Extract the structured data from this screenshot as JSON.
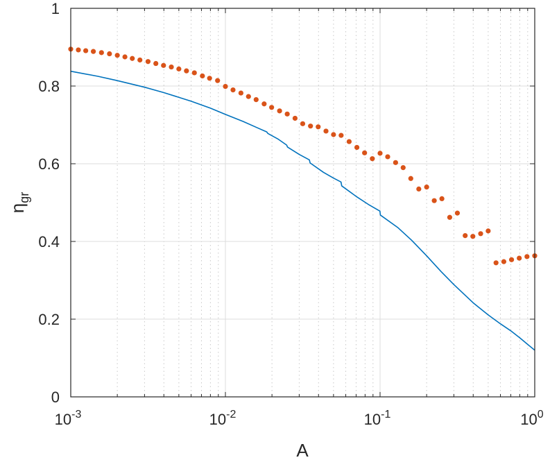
{
  "chart_data": {
    "type": "line",
    "xlabel": "A",
    "ylabel": "η",
    "ylabel_subscript": "gr",
    "x_scale": "log",
    "xlim": [
      0.001,
      1
    ],
    "ylim": [
      0,
      1
    ],
    "x_ticks": [
      {
        "value": 0.001,
        "base": "10",
        "exp": "-3"
      },
      {
        "value": 0.01,
        "base": "10",
        "exp": "-2"
      },
      {
        "value": 0.1,
        "base": "10",
        "exp": "-1"
      },
      {
        "value": 1,
        "base": "10",
        "exp": "0"
      }
    ],
    "y_ticks": [
      {
        "value": 0,
        "label": "0"
      },
      {
        "value": 0.2,
        "label": "0.2"
      },
      {
        "value": 0.4,
        "label": "0.4"
      },
      {
        "value": 0.6,
        "label": "0.6"
      },
      {
        "value": 0.8,
        "label": "0.8"
      },
      {
        "value": 1,
        "label": "1"
      }
    ],
    "grid": true,
    "minor_grid_x": true,
    "series": [
      {
        "style": "line",
        "color": "#0072BD",
        "points": [
          [
            0.001,
            0.838
          ],
          [
            0.0015,
            0.825
          ],
          [
            0.002,
            0.814
          ],
          [
            0.003,
            0.797
          ],
          [
            0.004,
            0.783
          ],
          [
            0.006,
            0.761
          ],
          [
            0.008,
            0.743
          ],
          [
            0.01,
            0.727
          ],
          [
            0.013,
            0.709
          ],
          [
            0.016,
            0.693
          ],
          [
            0.0185,
            0.682
          ],
          [
            0.0188,
            0.678
          ],
          [
            0.022,
            0.663
          ],
          [
            0.0249,
            0.648
          ],
          [
            0.0252,
            0.643
          ],
          [
            0.03,
            0.624
          ],
          [
            0.0349,
            0.61
          ],
          [
            0.0353,
            0.602
          ],
          [
            0.043,
            0.578
          ],
          [
            0.05,
            0.563
          ],
          [
            0.0559,
            0.553
          ],
          [
            0.0565,
            0.543
          ],
          [
            0.07,
            0.516
          ],
          [
            0.085,
            0.494
          ],
          [
            0.0998,
            0.478
          ],
          [
            0.1004,
            0.468
          ],
          [
            0.13,
            0.436
          ],
          [
            0.16,
            0.403
          ],
          [
            0.2,
            0.363
          ],
          [
            0.25,
            0.321
          ],
          [
            0.3,
            0.289
          ],
          [
            0.4,
            0.242
          ],
          [
            0.5,
            0.211
          ],
          [
            0.6,
            0.188
          ],
          [
            0.7,
            0.17
          ],
          [
            0.8,
            0.152
          ],
          [
            0.9,
            0.135
          ],
          [
            1.0,
            0.12
          ]
        ]
      },
      {
        "style": "dots",
        "color": "#D95319",
        "points": [
          [
            0.001,
            0.895
          ],
          [
            0.00112,
            0.893
          ],
          [
            0.00125,
            0.891
          ],
          [
            0.0014,
            0.889
          ],
          [
            0.00158,
            0.886
          ],
          [
            0.00178,
            0.883
          ],
          [
            0.002,
            0.879
          ],
          [
            0.00224,
            0.875
          ],
          [
            0.0025,
            0.871
          ],
          [
            0.0028,
            0.867
          ],
          [
            0.00316,
            0.863
          ],
          [
            0.00355,
            0.858
          ],
          [
            0.00398,
            0.853
          ],
          [
            0.00447,
            0.849
          ],
          [
            0.005,
            0.844
          ],
          [
            0.0056,
            0.839
          ],
          [
            0.0063,
            0.834
          ],
          [
            0.0071,
            0.826
          ],
          [
            0.0079,
            0.82
          ],
          [
            0.0089,
            0.814
          ],
          [
            0.01,
            0.799
          ],
          [
            0.0112,
            0.79
          ],
          [
            0.0126,
            0.782
          ],
          [
            0.0141,
            0.773
          ],
          [
            0.0158,
            0.765
          ],
          [
            0.0178,
            0.754
          ],
          [
            0.0199,
            0.745
          ],
          [
            0.0224,
            0.736
          ],
          [
            0.0251,
            0.728
          ],
          [
            0.0282,
            0.717
          ],
          [
            0.0316,
            0.703
          ],
          [
            0.0355,
            0.697
          ],
          [
            0.0398,
            0.695
          ],
          [
            0.0447,
            0.684
          ],
          [
            0.05,
            0.675
          ],
          [
            0.056,
            0.673
          ],
          [
            0.0631,
            0.657
          ],
          [
            0.0708,
            0.642
          ],
          [
            0.0794,
            0.628
          ],
          [
            0.0891,
            0.613
          ],
          [
            0.1,
            0.627
          ],
          [
            0.112,
            0.618
          ],
          [
            0.126,
            0.603
          ],
          [
            0.141,
            0.59
          ],
          [
            0.158,
            0.562
          ],
          [
            0.178,
            0.535
          ],
          [
            0.2,
            0.54
          ],
          [
            0.224,
            0.505
          ],
          [
            0.251,
            0.51
          ],
          [
            0.282,
            0.462
          ],
          [
            0.316,
            0.473
          ],
          [
            0.355,
            0.415
          ],
          [
            0.398,
            0.413
          ],
          [
            0.447,
            0.42
          ],
          [
            0.5,
            0.427
          ],
          [
            0.562,
            0.345
          ],
          [
            0.631,
            0.348
          ],
          [
            0.708,
            0.353
          ],
          [
            0.794,
            0.357
          ],
          [
            0.891,
            0.361
          ],
          [
            1.0,
            0.363
          ]
        ]
      }
    ]
  }
}
